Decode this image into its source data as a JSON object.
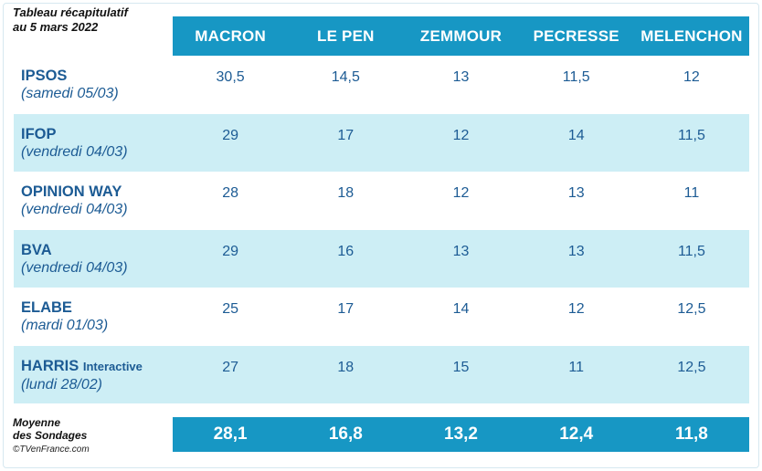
{
  "title": {
    "line1": "Tableau récapitulatif",
    "line2": "au 5 mars 2022"
  },
  "chart_data": {
    "type": "table",
    "columns": [
      "MACRON",
      "LE PEN",
      "ZEMMOUR",
      "PECRESSE",
      "MELENCHON"
    ],
    "rows": [
      {
        "institute": "IPSOS",
        "institute_sub": "",
        "date": "(samedi 05/03)",
        "values": [
          "30,5",
          "14,5",
          "13",
          "11,5",
          "12"
        ]
      },
      {
        "institute": "IFOP",
        "institute_sub": "",
        "date": "(vendredi 04/03)",
        "values": [
          "29",
          "17",
          "12",
          "14",
          "11,5"
        ]
      },
      {
        "institute": "OPINION WAY",
        "institute_sub": "",
        "date": "(vendredi 04/03)",
        "values": [
          "28",
          "18",
          "12",
          "13",
          "11"
        ]
      },
      {
        "institute": "BVA",
        "institute_sub": "",
        "date": "(vendredi 04/03)",
        "values": [
          "29",
          "16",
          "13",
          "13",
          "11,5"
        ]
      },
      {
        "institute": "ELABE",
        "institute_sub": "",
        "date": "(mardi 01/03)",
        "values": [
          "25",
          "17",
          "14",
          "12",
          "12,5"
        ]
      },
      {
        "institute": "HARRIS",
        "institute_sub": "Interactive",
        "date": "(lundi 28/02)",
        "values": [
          "27",
          "18",
          "15",
          "11",
          "12,5"
        ]
      }
    ],
    "average": {
      "label_line1": "Moyenne",
      "label_line2": "des Sondages",
      "values": [
        "28,1",
        "16,8",
        "13,2",
        "12,4",
        "11,8"
      ]
    }
  },
  "footer": {
    "copyright": "©TVenFrance.com"
  },
  "colors": {
    "header_bg": "#1797c4",
    "alt_row_bg": "#cdeef5",
    "text_blue": "#1c5b94"
  }
}
